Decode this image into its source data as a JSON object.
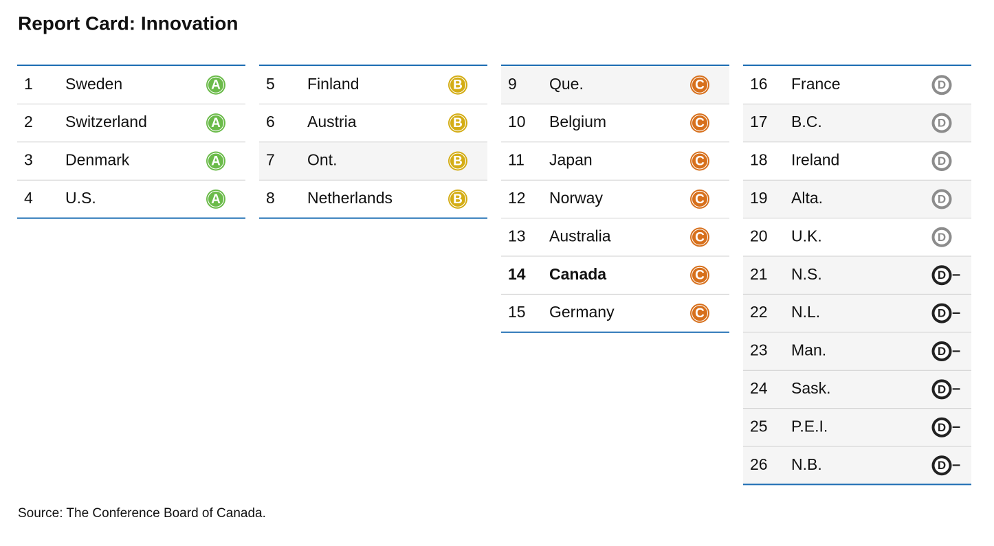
{
  "title": "Report Card: Innovation",
  "columns": [
    {
      "color": "#6bbb4a",
      "badge": "filled",
      "rows": [
        {
          "rank": 1,
          "name": "Sweden",
          "grade": "A"
        },
        {
          "rank": 2,
          "name": "Switzerland",
          "grade": "A"
        },
        {
          "rank": 3,
          "name": "Denmark",
          "grade": "A"
        },
        {
          "rank": 4,
          "name": "U.S.",
          "grade": "A"
        }
      ]
    },
    {
      "color": "#d4ad15",
      "badge": "filled",
      "rows": [
        {
          "rank": 5,
          "name": "Finland",
          "grade": "B"
        },
        {
          "rank": 6,
          "name": "Austria",
          "grade": "B"
        },
        {
          "rank": 7,
          "name": "Ont.",
          "grade": "B",
          "shaded": true
        },
        {
          "rank": 8,
          "name": "Netherlands",
          "grade": "B"
        }
      ]
    },
    {
      "color": "#d7701c",
      "badge": "filled",
      "rows": [
        {
          "rank": 9,
          "name": "Que.",
          "grade": "C",
          "shaded": true
        },
        {
          "rank": 10,
          "name": "Belgium",
          "grade": "C"
        },
        {
          "rank": 11,
          "name": "Japan",
          "grade": "C"
        },
        {
          "rank": 12,
          "name": "Norway",
          "grade": "C"
        },
        {
          "rank": 13,
          "name": "Australia",
          "grade": "C"
        },
        {
          "rank": 14,
          "name": "Canada",
          "grade": "C",
          "bold": true
        },
        {
          "rank": 15,
          "name": "Germany",
          "grade": "C"
        }
      ]
    },
    {
      "color": "#8c8c8c",
      "badge": "outline",
      "rows": [
        {
          "rank": 16,
          "name": "France",
          "grade": "D"
        },
        {
          "rank": 17,
          "name": "B.C.",
          "grade": "D",
          "shaded": true
        },
        {
          "rank": 18,
          "name": "Ireland",
          "grade": "D"
        },
        {
          "rank": 19,
          "name": "Alta.",
          "grade": "D",
          "shaded": true
        },
        {
          "rank": 20,
          "name": "U.K.",
          "grade": "D"
        },
        {
          "rank": 21,
          "name": "N.S.",
          "grade": "D",
          "suffix": "–",
          "color": "#222222",
          "shaded": true
        },
        {
          "rank": 22,
          "name": "N.L.",
          "grade": "D",
          "suffix": "–",
          "color": "#222222",
          "shaded": true
        },
        {
          "rank": 23,
          "name": "Man.",
          "grade": "D",
          "suffix": "–",
          "color": "#222222",
          "shaded": true
        },
        {
          "rank": 24,
          "name": "Sask.",
          "grade": "D",
          "suffix": "–",
          "color": "#222222",
          "shaded": true
        },
        {
          "rank": 25,
          "name": "P.E.I.",
          "grade": "D",
          "suffix": "–",
          "color": "#222222",
          "shaded": true
        },
        {
          "rank": 26,
          "name": "N.B.",
          "grade": "D",
          "suffix": "–",
          "color": "#222222",
          "shaded": true
        }
      ]
    }
  ],
  "source": "Source: The Conference Board of Canada."
}
